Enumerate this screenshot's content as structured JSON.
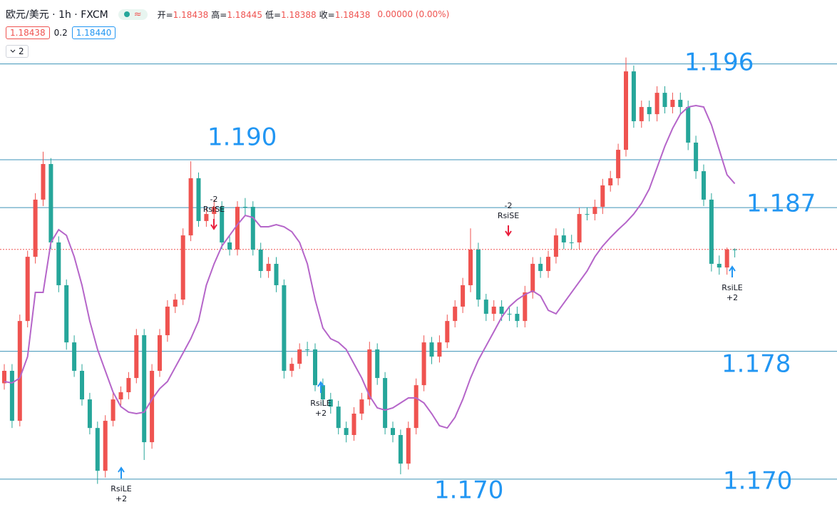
{
  "header": {
    "symbol": "欧元/美元 · 1h · FXCM",
    "badge": "≈",
    "ohlc": [
      {
        "label": "开=",
        "value": "1.18438"
      },
      {
        "label": "高=",
        "value": "1.18445"
      },
      {
        "label": "低=",
        "value": "1.18388"
      },
      {
        "label": "收=",
        "value": "1.18438"
      }
    ],
    "change": "0.00000 (0.00%)",
    "bid": "1.18438",
    "spread": "0.2",
    "ask": "1.18440",
    "collapse": "2"
  },
  "chart_data": {
    "type": "candlestick",
    "up_color": "#ef5350",
    "down_color": "#26a69a",
    "ma_color": "#b565c9",
    "level_color": "#3d93b8",
    "label_color": "#2196f3",
    "ylim": [
      1.167,
      1.2
    ],
    "candles": [
      [
        1.176,
        1.1772,
        1.1756,
        1.17678
      ],
      [
        1.17678,
        1.1772,
        1.1732,
        1.17365
      ],
      [
        1.17365,
        1.1803,
        1.1733,
        1.1799
      ],
      [
        1.1799,
        1.1843,
        1.1795,
        1.18392
      ],
      [
        1.18392,
        1.1879,
        1.1835,
        1.1875
      ],
      [
        1.1875,
        1.1905,
        1.1871,
        1.18973
      ],
      [
        1.18973,
        1.1901,
        1.1844,
        1.18482
      ],
      [
        1.18482,
        1.1852,
        1.1817,
        1.18214
      ],
      [
        1.18214,
        1.1825,
        1.1781,
        1.17856
      ],
      [
        1.17856,
        1.179,
        1.1764,
        1.17678
      ],
      [
        1.17678,
        1.1772,
        1.1746,
        1.17499
      ],
      [
        1.17499,
        1.1754,
        1.1728,
        1.1732
      ],
      [
        1.1732,
        1.1736,
        1.1697,
        1.17052
      ],
      [
        1.17052,
        1.174,
        1.1701,
        1.17365
      ],
      [
        1.17365,
        1.1754,
        1.1733,
        1.17499
      ],
      [
        1.17499,
        1.1758,
        1.1746,
        1.17544
      ],
      [
        1.17544,
        1.1767,
        1.175,
        1.17633
      ],
      [
        1.17633,
        1.1794,
        1.176,
        1.17901
      ],
      [
        1.17901,
        1.1794,
        1.1712,
        1.17231
      ],
      [
        1.17231,
        1.1772,
        1.1719,
        1.17678
      ],
      [
        1.17678,
        1.1794,
        1.1764,
        1.17901
      ],
      [
        1.17901,
        1.1812,
        1.1786,
        1.1808
      ],
      [
        1.1808,
        1.1816,
        1.1804,
        1.18124
      ],
      [
        1.18124,
        1.1857,
        1.1809,
        1.18526
      ],
      [
        1.18526,
        1.1899,
        1.1849,
        1.18884
      ],
      [
        1.18884,
        1.1892,
        1.1858,
        1.18616
      ],
      [
        1.18616,
        1.187,
        1.1858,
        1.1866
      ],
      [
        1.1866,
        1.1875,
        1.1862,
        1.18705
      ],
      [
        1.18705,
        1.1874,
        1.1844,
        1.18482
      ],
      [
        1.18482,
        1.1852,
        1.184,
        1.18437
      ],
      [
        1.18437,
        1.1874,
        1.184,
        1.18705
      ],
      [
        1.18705,
        1.1876,
        1.1865,
        1.18705
      ],
      [
        1.18705,
        1.1874,
        1.184,
        1.18437
      ],
      [
        1.18437,
        1.1848,
        1.1826,
        1.18303
      ],
      [
        1.18303,
        1.1839,
        1.1826,
        1.18348
      ],
      [
        1.18348,
        1.1839,
        1.1817,
        1.18214
      ],
      [
        1.18214,
        1.1825,
        1.1763,
        1.17678
      ],
      [
        1.17678,
        1.1776,
        1.1764,
        1.17722
      ],
      [
        1.17722,
        1.1785,
        1.1769,
        1.17812
      ],
      [
        1.17812,
        1.1786,
        1.1777,
        1.17812
      ],
      [
        1.17812,
        1.1785,
        1.1755,
        1.17588
      ],
      [
        1.17588,
        1.1763,
        1.1746,
        1.17499
      ],
      [
        1.17499,
        1.1754,
        1.1741,
        1.17454
      ],
      [
        1.17454,
        1.1749,
        1.1728,
        1.1732
      ],
      [
        1.1732,
        1.1736,
        1.1723,
        1.17276
      ],
      [
        1.17276,
        1.1745,
        1.1724,
        1.1741
      ],
      [
        1.1741,
        1.1754,
        1.1737,
        1.17499
      ],
      [
        1.17499,
        1.1786,
        1.1746,
        1.17812
      ],
      [
        1.17812,
        1.1785,
        1.1759,
        1.17633
      ],
      [
        1.17633,
        1.1767,
        1.1728,
        1.1732
      ],
      [
        1.1732,
        1.1736,
        1.1723,
        1.17276
      ],
      [
        1.17276,
        1.1731,
        1.1703,
        1.17097
      ],
      [
        1.17097,
        1.1736,
        1.1706,
        1.1732
      ],
      [
        1.1732,
        1.1763,
        1.1728,
        1.17588
      ],
      [
        1.17588,
        1.179,
        1.1755,
        1.17856
      ],
      [
        1.17856,
        1.1789,
        1.1772,
        1.17767
      ],
      [
        1.17767,
        1.179,
        1.1773,
        1.17856
      ],
      [
        1.17856,
        1.1803,
        1.1782,
        1.1799
      ],
      [
        1.1799,
        1.1812,
        1.1795,
        1.1808
      ],
      [
        1.1808,
        1.1826,
        1.1804,
        1.18214
      ],
      [
        1.18214,
        1.1857,
        1.1817,
        1.18437
      ],
      [
        1.18437,
        1.1848,
        1.1808,
        1.18124
      ],
      [
        1.18124,
        1.1816,
        1.1799,
        1.18035
      ],
      [
        1.18035,
        1.1812,
        1.1799,
        1.1808
      ],
      [
        1.1808,
        1.1812,
        1.1799,
        1.18035
      ],
      [
        1.18035,
        1.1808,
        1.1799,
        1.18035
      ],
      [
        1.18035,
        1.1808,
        1.1795,
        1.1799
      ],
      [
        1.1799,
        1.1821,
        1.1795,
        1.18169
      ],
      [
        1.18169,
        1.1839,
        1.1813,
        1.18348
      ],
      [
        1.18348,
        1.1839,
        1.1826,
        1.18303
      ],
      [
        1.18303,
        1.1843,
        1.1826,
        1.18392
      ],
      [
        1.18392,
        1.1857,
        1.1835,
        1.18526
      ],
      [
        1.18526,
        1.1857,
        1.1844,
        1.18482
      ],
      [
        1.18482,
        1.1853,
        1.1844,
        1.18482
      ],
      [
        1.18482,
        1.187,
        1.1844,
        1.1866
      ],
      [
        1.1866,
        1.187,
        1.1862,
        1.1866
      ],
      [
        1.1866,
        1.1875,
        1.1862,
        1.18705
      ],
      [
        1.18705,
        1.1888,
        1.1866,
        1.18839
      ],
      [
        1.18839,
        1.1893,
        1.188,
        1.18884
      ],
      [
        1.18884,
        1.191,
        1.1884,
        1.19062
      ],
      [
        1.19062,
        1.1964,
        1.1902,
        1.19553
      ],
      [
        1.19553,
        1.1959,
        1.192,
        1.19241
      ],
      [
        1.19241,
        1.1937,
        1.192,
        1.1933
      ],
      [
        1.1933,
        1.1937,
        1.1924,
        1.19285
      ],
      [
        1.19285,
        1.1946,
        1.1924,
        1.19419
      ],
      [
        1.19419,
        1.1946,
        1.1929,
        1.1933
      ],
      [
        1.1933,
        1.1942,
        1.1929,
        1.19375
      ],
      [
        1.19375,
        1.1942,
        1.1929,
        1.1933
      ],
      [
        1.1933,
        1.1937,
        1.1906,
        1.19107
      ],
      [
        1.19107,
        1.1915,
        1.1888,
        1.18928
      ],
      [
        1.18928,
        1.1897,
        1.1871,
        1.1875
      ],
      [
        1.1875,
        1.1879,
        1.183,
        1.18348
      ],
      [
        1.18348,
        1.184,
        1.1828,
        1.18325
      ],
      [
        1.18325,
        1.1845,
        1.1828,
        1.18438
      ],
      [
        1.18438,
        1.18445,
        1.18388,
        1.18438
      ]
    ],
    "ma": [
      1.17611,
      1.17602,
      1.17633,
      1.17767,
      1.18169,
      1.18169,
      1.18482,
      1.18562,
      1.18526,
      1.18392,
      1.18214,
      1.1799,
      1.17812,
      1.17678,
      1.17544,
      1.17454,
      1.17419,
      1.1741,
      1.17419,
      1.17499,
      1.17566,
      1.17611,
      1.177,
      1.17789,
      1.17879,
      1.1799,
      1.18214,
      1.18348,
      1.18459,
      1.18526,
      1.18593,
      1.18651,
      1.18638,
      1.1858,
      1.1858,
      1.18593,
      1.1858,
      1.18549,
      1.18482,
      1.18348,
      1.18124,
      1.17946,
      1.17879,
      1.17856,
      1.17812,
      1.17722,
      1.17633,
      1.17521,
      1.17446,
      1.17432,
      1.17446,
      1.17477,
      1.17508,
      1.17508,
      1.17477,
      1.1741,
      1.17334,
      1.1732,
      1.17387,
      1.17499,
      1.17633,
      1.17745,
      1.17834,
      1.17923,
      1.18013,
      1.1808,
      1.18124,
      1.18156,
      1.18178,
      1.18147,
      1.18057,
      1.18035,
      1.18102,
      1.18169,
      1.18236,
      1.18303,
      1.18392,
      1.18459,
      1.18513,
      1.18562,
      1.18607,
      1.1866,
      1.18727,
      1.18817,
      1.1895,
      1.19084,
      1.19196,
      1.19285,
      1.1933,
      1.19339,
      1.1933,
      1.19218,
      1.19062,
      1.18906,
      1.1885
    ],
    "levels": [
      {
        "value": 1.196,
        "labels": [
          "1.196"
        ]
      },
      {
        "value": 1.19,
        "labels": [
          "1.190"
        ]
      },
      {
        "value": 1.187,
        "labels": [
          "1.187"
        ]
      },
      {
        "value": 1.178,
        "labels": [
          "1.178"
        ]
      },
      {
        "value": 1.17,
        "labels": [
          "1.170",
          "1.170"
        ]
      }
    ],
    "signals": [
      {
        "qty": "-2",
        "name": "RsiSE"
      },
      {
        "qty": "-2",
        "name": "RsiSE"
      },
      {
        "name": "RsiLE",
        "qty": "+2"
      },
      {
        "name": "RsiLE",
        "qty": "+2"
      },
      {
        "name": "RsiLE",
        "qty": "+2"
      }
    ]
  }
}
